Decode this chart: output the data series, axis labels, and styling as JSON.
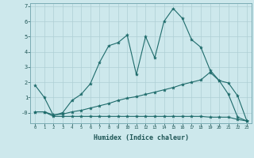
{
  "xlabel": "Humidex (Indice chaleur)",
  "background_color": "#cde8ec",
  "grid_color": "#aecfd5",
  "line_color": "#1e6b6b",
  "xlim": [
    -0.5,
    23.5
  ],
  "ylim": [
    -0.7,
    7.2
  ],
  "line1_x": [
    0,
    1,
    2,
    3,
    4,
    5,
    6,
    7,
    8,
    9,
    10,
    11,
    12,
    13,
    14,
    15,
    16,
    17,
    18,
    19,
    20,
    21,
    22,
    23
  ],
  "line1_y": [
    1.8,
    1.0,
    -0.2,
    0.0,
    0.8,
    1.2,
    1.9,
    3.3,
    4.4,
    4.6,
    5.1,
    2.5,
    5.0,
    3.6,
    6.0,
    6.85,
    6.2,
    4.8,
    4.3,
    2.8,
    2.1,
    1.2,
    -0.3,
    -0.55
  ],
  "line2_x": [
    0,
    1,
    2,
    3,
    4,
    5,
    6,
    7,
    8,
    9,
    10,
    11,
    12,
    13,
    14,
    15,
    16,
    17,
    18,
    19,
    20,
    21,
    22,
    23
  ],
  "line2_y": [
    0.05,
    0.05,
    -0.15,
    -0.1,
    0.05,
    0.15,
    0.3,
    0.45,
    0.6,
    0.8,
    0.95,
    1.05,
    1.2,
    1.35,
    1.5,
    1.65,
    1.85,
    2.0,
    2.15,
    2.65,
    2.1,
    1.95,
    1.1,
    -0.55
  ],
  "line3_x": [
    0,
    1,
    2,
    3,
    4,
    5,
    6,
    7,
    8,
    9,
    10,
    11,
    12,
    13,
    14,
    15,
    16,
    17,
    18,
    19,
    20,
    21,
    22,
    23
  ],
  "line3_y": [
    0.05,
    0.05,
    -0.25,
    -0.25,
    -0.25,
    -0.25,
    -0.25,
    -0.25,
    -0.25,
    -0.25,
    -0.25,
    -0.25,
    -0.25,
    -0.25,
    -0.25,
    -0.25,
    -0.25,
    -0.25,
    -0.25,
    -0.3,
    -0.3,
    -0.3,
    -0.45,
    -0.55
  ]
}
